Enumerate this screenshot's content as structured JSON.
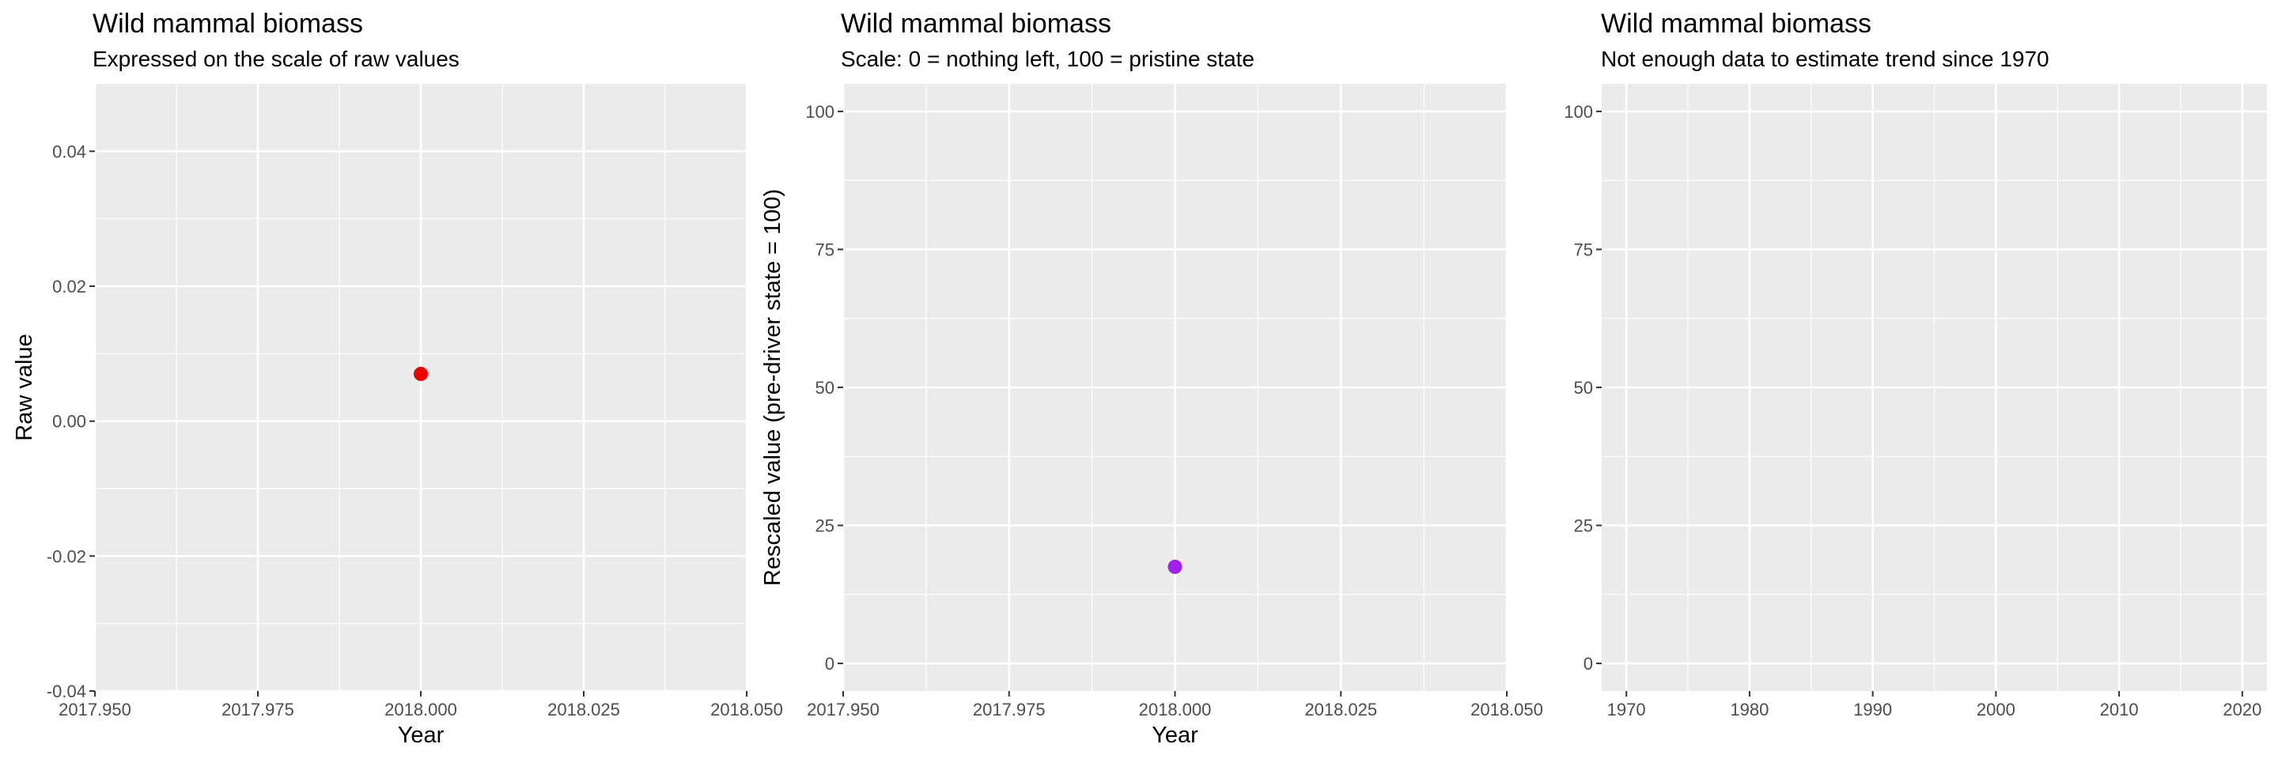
{
  "chart_data": [
    {
      "type": "scatter",
      "title": "Wild mammal biomass",
      "subtitle": "Expressed on the scale of raw values",
      "xlabel": "Year",
      "ylabel": "Raw value",
      "xlim": [
        2017.95,
        2018.05
      ],
      "ylim": [
        -0.04,
        0.05
      ],
      "x_ticks": [
        "2017.950",
        "2017.975",
        "2018.000",
        "2018.025",
        "2018.050"
      ],
      "y_ticks": [
        "0.04",
        "0.02",
        "0.00",
        "-0.02",
        "-0.04"
      ],
      "grid": true,
      "points": [
        {
          "x": 2018.0,
          "y": 0.007,
          "color": "#ee0000"
        }
      ]
    },
    {
      "type": "scatter",
      "title": "Wild mammal biomass",
      "subtitle": "Scale: 0 = nothing left, 100 = pristine state",
      "xlabel": "Year",
      "ylabel": "Rescaled value (pre-driver state = 100)",
      "xlim": [
        2017.95,
        2018.05
      ],
      "ylim": [
        -5,
        105
      ],
      "x_ticks": [
        "2017.950",
        "2017.975",
        "2018.000",
        "2018.025",
        "2018.050"
      ],
      "y_ticks": [
        "100",
        "75",
        "50",
        "25",
        "0"
      ],
      "grid": true,
      "points": [
        {
          "x": 2018.0,
          "y": 17.5,
          "color": "#a020f0"
        }
      ]
    },
    {
      "type": "scatter",
      "title": "Wild mammal biomass",
      "subtitle": "Not enough data to estimate trend since 1970",
      "xlabel": "",
      "ylabel": "",
      "xlim": [
        1968,
        2022
      ],
      "ylim": [
        -5,
        105
      ],
      "x_ticks": [
        "1970",
        "1980",
        "1990",
        "2000",
        "2010",
        "2020"
      ],
      "y_ticks": [
        "100",
        "75",
        "50",
        "25",
        "0"
      ],
      "grid": true,
      "points": []
    }
  ]
}
